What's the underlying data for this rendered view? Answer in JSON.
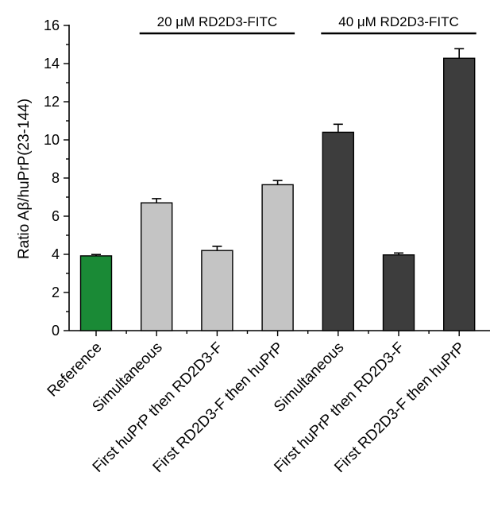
{
  "chart_data": {
    "type": "bar",
    "ylabel": "Ratio Aβ/huPrP(23-144)",
    "ylim": [
      0,
      16
    ],
    "yticks": [
      0,
      2,
      4,
      6,
      8,
      10,
      12,
      14,
      16
    ],
    "categories": [
      "Reference",
      "Simultaneous",
      "First huPrP then RD2D3-F",
      "First RD2D3-F then huPrP",
      "Simultaneous",
      "First huPrP then RD2D3-F",
      "First RD2D3-F then huPrP"
    ],
    "values": [
      3.92,
      6.7,
      4.2,
      7.65,
      10.4,
      3.97,
      14.28
    ],
    "errors": [
      0.07,
      0.22,
      0.22,
      0.22,
      0.42,
      0.1,
      0.5
    ],
    "bar_colors": [
      "#1a8a36",
      "#c4c4c4",
      "#c4c4c4",
      "#c4c4c4",
      "#3d3d3d",
      "#3d3d3d",
      "#3d3d3d"
    ],
    "groups": [
      {
        "label": "20 μM RD2D3-FITC",
        "from": 1,
        "to": 3
      },
      {
        "label": "40 μM RD2D3-FITC",
        "from": 4,
        "to": 6
      }
    ]
  }
}
